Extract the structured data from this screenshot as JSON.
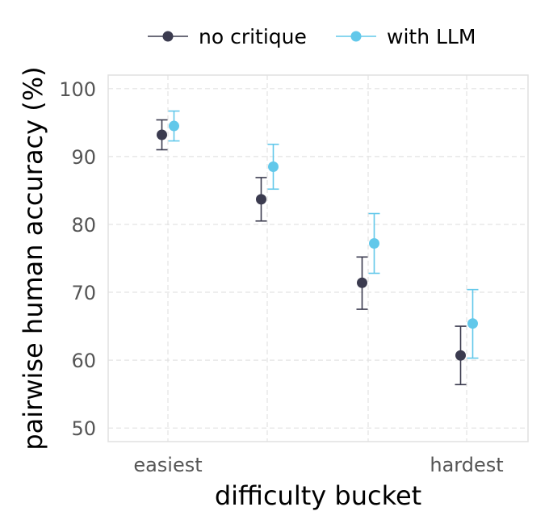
{
  "chart_data": {
    "type": "scatter",
    "title": "",
    "xlabel": "difficulty bucket",
    "ylabel": "pairwise human accuracy (%)",
    "x_ticks": [
      "easiest",
      "",
      "",
      "hardest"
    ],
    "categories_count": 4,
    "ylim": [
      48,
      102
    ],
    "y_ticks": [
      50,
      60,
      70,
      80,
      90,
      100
    ],
    "grid": true,
    "legend_position": "top",
    "series": [
      {
        "name": "no critique",
        "color": "#3b3b4f",
        "values": [
          93.2,
          83.7,
          71.4,
          60.7
        ],
        "err_low": [
          91.0,
          80.5,
          67.5,
          56.4
        ],
        "err_high": [
          95.4,
          86.9,
          75.2,
          65.0
        ]
      },
      {
        "name": "with LLM",
        "color": "#62c8ea",
        "values": [
          94.5,
          88.5,
          77.2,
          65.4
        ],
        "err_low": [
          92.3,
          85.2,
          72.8,
          60.3
        ],
        "err_high": [
          96.7,
          91.8,
          81.6,
          70.4
        ]
      }
    ]
  }
}
